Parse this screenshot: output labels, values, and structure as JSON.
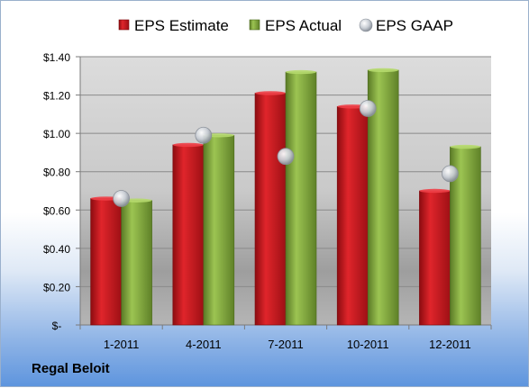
{
  "company_label": "Regal Beloit",
  "colors": {
    "estimate": "#c0141a",
    "actual": "#7da33a",
    "gaap": "#c8cdd4"
  },
  "chart_data": {
    "type": "bar",
    "categories": [
      "1-2011",
      "4-2011",
      "7-2011",
      "10-2011",
      "12-2011"
    ],
    "series": [
      {
        "name": "EPS Estimate",
        "values": [
          0.66,
          0.94,
          1.21,
          1.14,
          0.7
        ]
      },
      {
        "name": "EPS Actual",
        "values": [
          0.65,
          0.99,
          1.32,
          1.33,
          0.93
        ]
      },
      {
        "name": "EPS GAAP",
        "type": "scatter",
        "values": [
          0.66,
          0.99,
          0.88,
          1.13,
          0.79
        ]
      }
    ],
    "ylim": [
      0,
      1.4
    ],
    "ytick_values": [
      0,
      0.2,
      0.4,
      0.6,
      0.8,
      1.0,
      1.2,
      1.4
    ],
    "ytick_labels": [
      "$-",
      "$0.20",
      "$0.40",
      "$0.60",
      "$0.80",
      "$1.00",
      "$1.20",
      "$1.40"
    ],
    "grid": true,
    "legend": "top"
  }
}
